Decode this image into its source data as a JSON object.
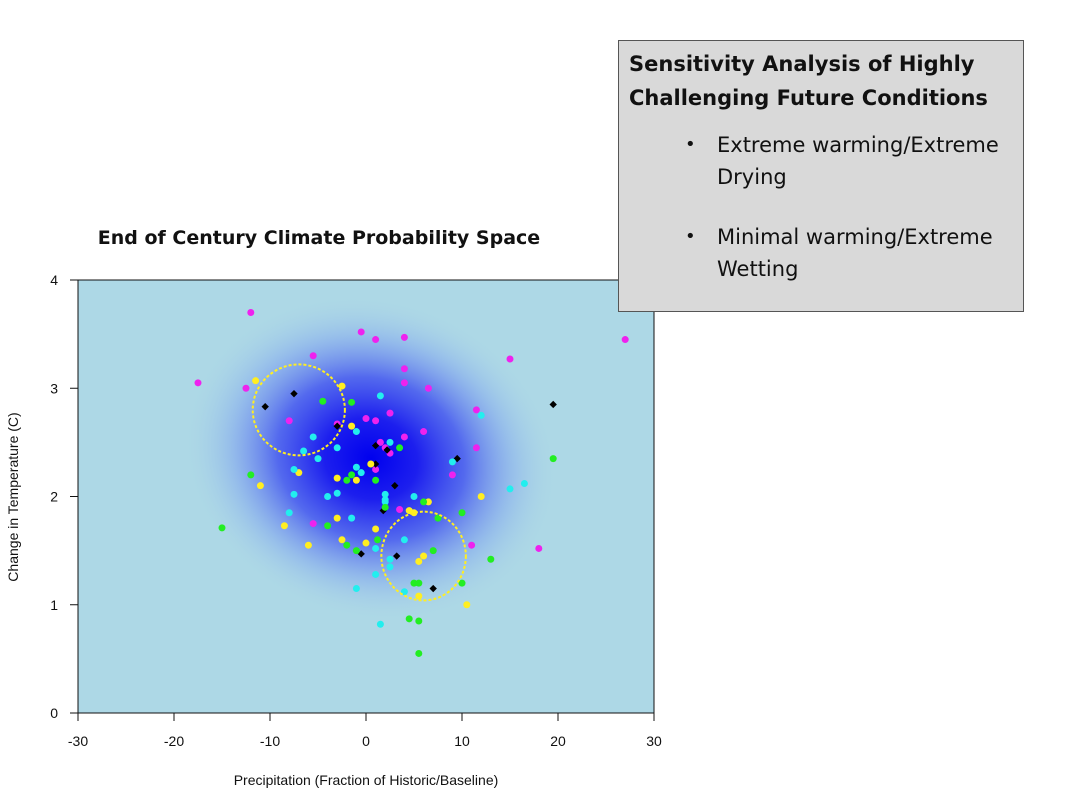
{
  "callout": {
    "title": "Sensitivity Analysis of Highly Challenging Future Conditions",
    "bullets": [
      "Extreme warming/Extreme Drying",
      "Minimal warming/Extreme Wetting"
    ]
  },
  "chart_data": {
    "type": "scatter",
    "title": "End of Century Climate Probability Space",
    "xlabel": "Precipitation (Fraction of Historic/Baseline)",
    "ylabel": "Change in Temperature (C)",
    "xlim": [
      -30,
      30
    ],
    "ylim": [
      0,
      4
    ],
    "xticks": [
      -30,
      -20,
      -10,
      0,
      10,
      20,
      30
    ],
    "yticks": [
      0,
      1,
      2,
      3,
      4
    ],
    "background_color": "#add8e6",
    "density": {
      "center": [
        0.5,
        2.35
      ],
      "sd": [
        9,
        0.55
      ],
      "color": "#0000ee"
    },
    "colors": {
      "magenta": "#ee22ee",
      "black": "#000000",
      "yellow": "#ffee22",
      "cyan": "#22eeee",
      "green": "#22ee22",
      "highlight_circle": "#ffee22"
    },
    "highlight_regions": [
      {
        "label": "Extreme warming/Extreme Drying",
        "center": [
          -7,
          2.8
        ],
        "rx": 4.8,
        "ry": 0.42
      },
      {
        "label": "Minimal warming/Extreme Wetting",
        "center": [
          6,
          1.45
        ],
        "rx": 4.4,
        "ry": 0.41
      }
    ],
    "series": [
      {
        "name": "magenta",
        "points": [
          [
            -12,
            3.7
          ],
          [
            -17.5,
            3.05
          ],
          [
            -12.5,
            3.0
          ],
          [
            -5.5,
            3.3
          ],
          [
            -0.5,
            3.52
          ],
          [
            1,
            3.45
          ],
          [
            4,
            3.47
          ],
          [
            4,
            3.18
          ],
          [
            4,
            3.05
          ],
          [
            6.5,
            3.0
          ],
          [
            15,
            3.27
          ],
          [
            27,
            3.45
          ],
          [
            11.5,
            2.8
          ],
          [
            2.5,
            2.77
          ],
          [
            -8,
            2.7
          ],
          [
            -3,
            2.67
          ],
          [
            0,
            2.72
          ],
          [
            1,
            2.7
          ],
          [
            4,
            2.55
          ],
          [
            6,
            2.6
          ],
          [
            2,
            2.45
          ],
          [
            11.5,
            2.45
          ],
          [
            9,
            2.2
          ],
          [
            1,
            2.25
          ],
          [
            -5.5,
            1.75
          ],
          [
            3.5,
            1.88
          ],
          [
            11,
            1.55
          ],
          [
            18,
            1.52
          ],
          [
            1.5,
            2.5
          ],
          [
            2.5,
            2.4
          ]
        ]
      },
      {
        "name": "black",
        "points": [
          [
            -10.5,
            2.83
          ],
          [
            -7.5,
            2.95
          ],
          [
            -3,
            2.65
          ],
          [
            1,
            2.47
          ],
          [
            2.2,
            2.43
          ],
          [
            1,
            2.3
          ],
          [
            9.5,
            2.35
          ],
          [
            -1,
            2.15
          ],
          [
            1.8,
            1.87
          ],
          [
            3.2,
            1.45
          ],
          [
            -0.5,
            1.47
          ],
          [
            7,
            1.15
          ],
          [
            19.5,
            2.85
          ],
          [
            3,
            2.1
          ]
        ]
      },
      {
        "name": "yellow",
        "points": [
          [
            -11.5,
            3.07
          ],
          [
            -2.5,
            3.02
          ],
          [
            -1.5,
            2.65
          ],
          [
            -7,
            2.22
          ],
          [
            -3,
            2.17
          ],
          [
            -11,
            2.1
          ],
          [
            -1,
            2.15
          ],
          [
            0.5,
            2.3
          ],
          [
            12,
            2.0
          ],
          [
            6.5,
            1.95
          ],
          [
            4.5,
            1.87
          ],
          [
            5,
            1.85
          ],
          [
            -3,
            1.8
          ],
          [
            -8.5,
            1.73
          ],
          [
            -2.5,
            1.6
          ],
          [
            -6,
            1.55
          ],
          [
            0,
            1.57
          ],
          [
            5.5,
            1.4
          ],
          [
            6,
            1.45
          ],
          [
            5.5,
            1.08
          ],
          [
            10.5,
            1.0
          ],
          [
            1,
            1.7
          ]
        ]
      },
      {
        "name": "cyan",
        "points": [
          [
            -5.5,
            2.55
          ],
          [
            -1,
            2.6
          ],
          [
            -3,
            2.45
          ],
          [
            1.5,
            2.93
          ],
          [
            2.5,
            2.5
          ],
          [
            -6.5,
            2.42
          ],
          [
            12,
            2.75
          ],
          [
            -1,
            2.27
          ],
          [
            -0.5,
            2.22
          ],
          [
            -7.5,
            2.25
          ],
          [
            -5,
            2.35
          ],
          [
            -4,
            2.0
          ],
          [
            -3,
            2.03
          ],
          [
            -7.5,
            2.02
          ],
          [
            2,
            2.02
          ],
          [
            2,
            1.97
          ],
          [
            5,
            2.0
          ],
          [
            9,
            2.32
          ],
          [
            15,
            2.07
          ],
          [
            16.5,
            2.12
          ],
          [
            -8,
            1.85
          ],
          [
            -1.5,
            1.8
          ],
          [
            4,
            1.6
          ],
          [
            1,
            1.52
          ],
          [
            2.5,
            1.42
          ],
          [
            2.5,
            1.35
          ],
          [
            -1,
            1.15
          ],
          [
            1,
            1.28
          ],
          [
            4,
            1.12
          ],
          [
            1.5,
            0.82
          ],
          [
            2,
            1.95
          ]
        ]
      },
      {
        "name": "green",
        "points": [
          [
            -4.5,
            2.88
          ],
          [
            -1.5,
            2.87
          ],
          [
            3.5,
            2.45
          ],
          [
            -12,
            2.2
          ],
          [
            -1.5,
            2.2
          ],
          [
            1,
            2.15
          ],
          [
            -2,
            2.15
          ],
          [
            2,
            1.9
          ],
          [
            -4,
            1.73
          ],
          [
            -15,
            1.71
          ],
          [
            6,
            1.95
          ],
          [
            10,
            1.85
          ],
          [
            7.5,
            1.8
          ],
          [
            1.2,
            1.6
          ],
          [
            -2,
            1.55
          ],
          [
            7,
            1.5
          ],
          [
            13,
            1.42
          ],
          [
            5,
            1.2
          ],
          [
            5.5,
            1.2
          ],
          [
            10,
            1.2
          ],
          [
            4.5,
            0.87
          ],
          [
            5.5,
            0.85
          ],
          [
            5.5,
            0.55
          ],
          [
            19.5,
            2.35
          ],
          [
            -1,
            1.5
          ]
        ]
      }
    ]
  }
}
